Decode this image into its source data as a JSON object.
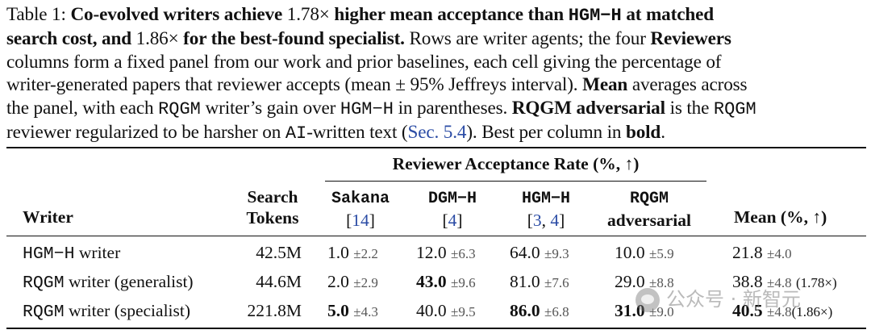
{
  "caption": {
    "line1_label": "Table 1: ",
    "line1_bold_a": "Co-evolved writers achieve ",
    "line1_num_a": "1.78×",
    "line1_bold_b": " higher mean acceptance than ",
    "line1_mono": "HGM−H",
    "line1_bold_c": " at matched",
    "line2_bold_a": "search cost, and ",
    "line2_num": "1.86×",
    "line2_bold_b": " for the best-found specialist.",
    "line2_rest": " Rows are writer agents; the four ",
    "line2_bold_c": "Reviewers",
    "line3": "columns form a fixed panel from our work and prior baselines, each cell giving the percentage of",
    "line4_a": "writer-generated papers that reviewer accepts (mean ± 95% Jeffreys interval). ",
    "line4_bold": "Mean",
    "line4_b": " averages across",
    "line5_a": "the panel, with each ",
    "line5_mono_a": "RQGM",
    "line5_b": " writer’s gain over ",
    "line5_mono_b": "HGM−H",
    "line5_c": " in parentheses. ",
    "line5_bold": "RQGM adversarial",
    "line5_d": " is the ",
    "line5_mono_c": "RQGM",
    "line6_a": "reviewer regularized to be harsher on ",
    "line6_mono": "AI",
    "line6_b": "-written text (",
    "line6_link": "Sec. 5.4",
    "line6_c": "). Best per column in ",
    "line6_bold": "bold",
    "line6_d": "."
  },
  "table": {
    "group_header": "Reviewer Acceptance Rate (%, ↑)",
    "headers": {
      "writer": "Writer",
      "tokens_1": "Search",
      "tokens_2": "Tokens",
      "sakana": "Sakana",
      "sakana_ref": "14",
      "dgm": "DGM−H",
      "dgm_ref": "4",
      "hgm": "HGM−H",
      "hgm_ref_a": "3",
      "hgm_ref_b": "4",
      "rqgm_1": "RQGM",
      "rqgm_2": "adversarial",
      "mean": "Mean (%, ↑)"
    },
    "rows": [
      {
        "writer_mono": "HGM−H",
        "writer_rest": " writer",
        "tokens": "42.5M",
        "sakana": "1.0",
        "sakana_pm": "±2.2",
        "dgm": "12.0",
        "dgm_pm": "±6.3",
        "hgm": "64.0",
        "hgm_pm": "±9.3",
        "rqgm": "10.0",
        "rqgm_pm": "±5.9",
        "mean": "21.8",
        "mean_pm": "±4.0",
        "gain": ""
      },
      {
        "writer_mono": "RQGM",
        "writer_rest": " writer (generalist)",
        "tokens": "44.6M",
        "sakana": "2.0",
        "sakana_pm": "±2.9",
        "dgm": "43.0",
        "dgm_pm": "±9.6",
        "hgm": "81.0",
        "hgm_pm": "±7.6",
        "rqgm": "29.0",
        "rqgm_pm": "±8.8",
        "mean": "38.8",
        "mean_pm": "±4.8",
        "gain": "(1.78×)"
      },
      {
        "writer_mono": "RQGM",
        "writer_rest": " writer (specialist)",
        "tokens": "221.8M",
        "sakana": "5.0",
        "sakana_pm": "±4.3",
        "dgm": "40.0",
        "dgm_pm": "±9.5",
        "hgm": "86.0",
        "hgm_pm": "±6.8",
        "rqgm": "31.0",
        "rqgm_pm": "±9.0",
        "mean": "40.5",
        "mean_pm": "±4.8",
        "gain": "(1.86×)"
      }
    ]
  },
  "watermark": {
    "text": "公众号 · 新智元",
    "icon": "wechat-logo-icon"
  }
}
